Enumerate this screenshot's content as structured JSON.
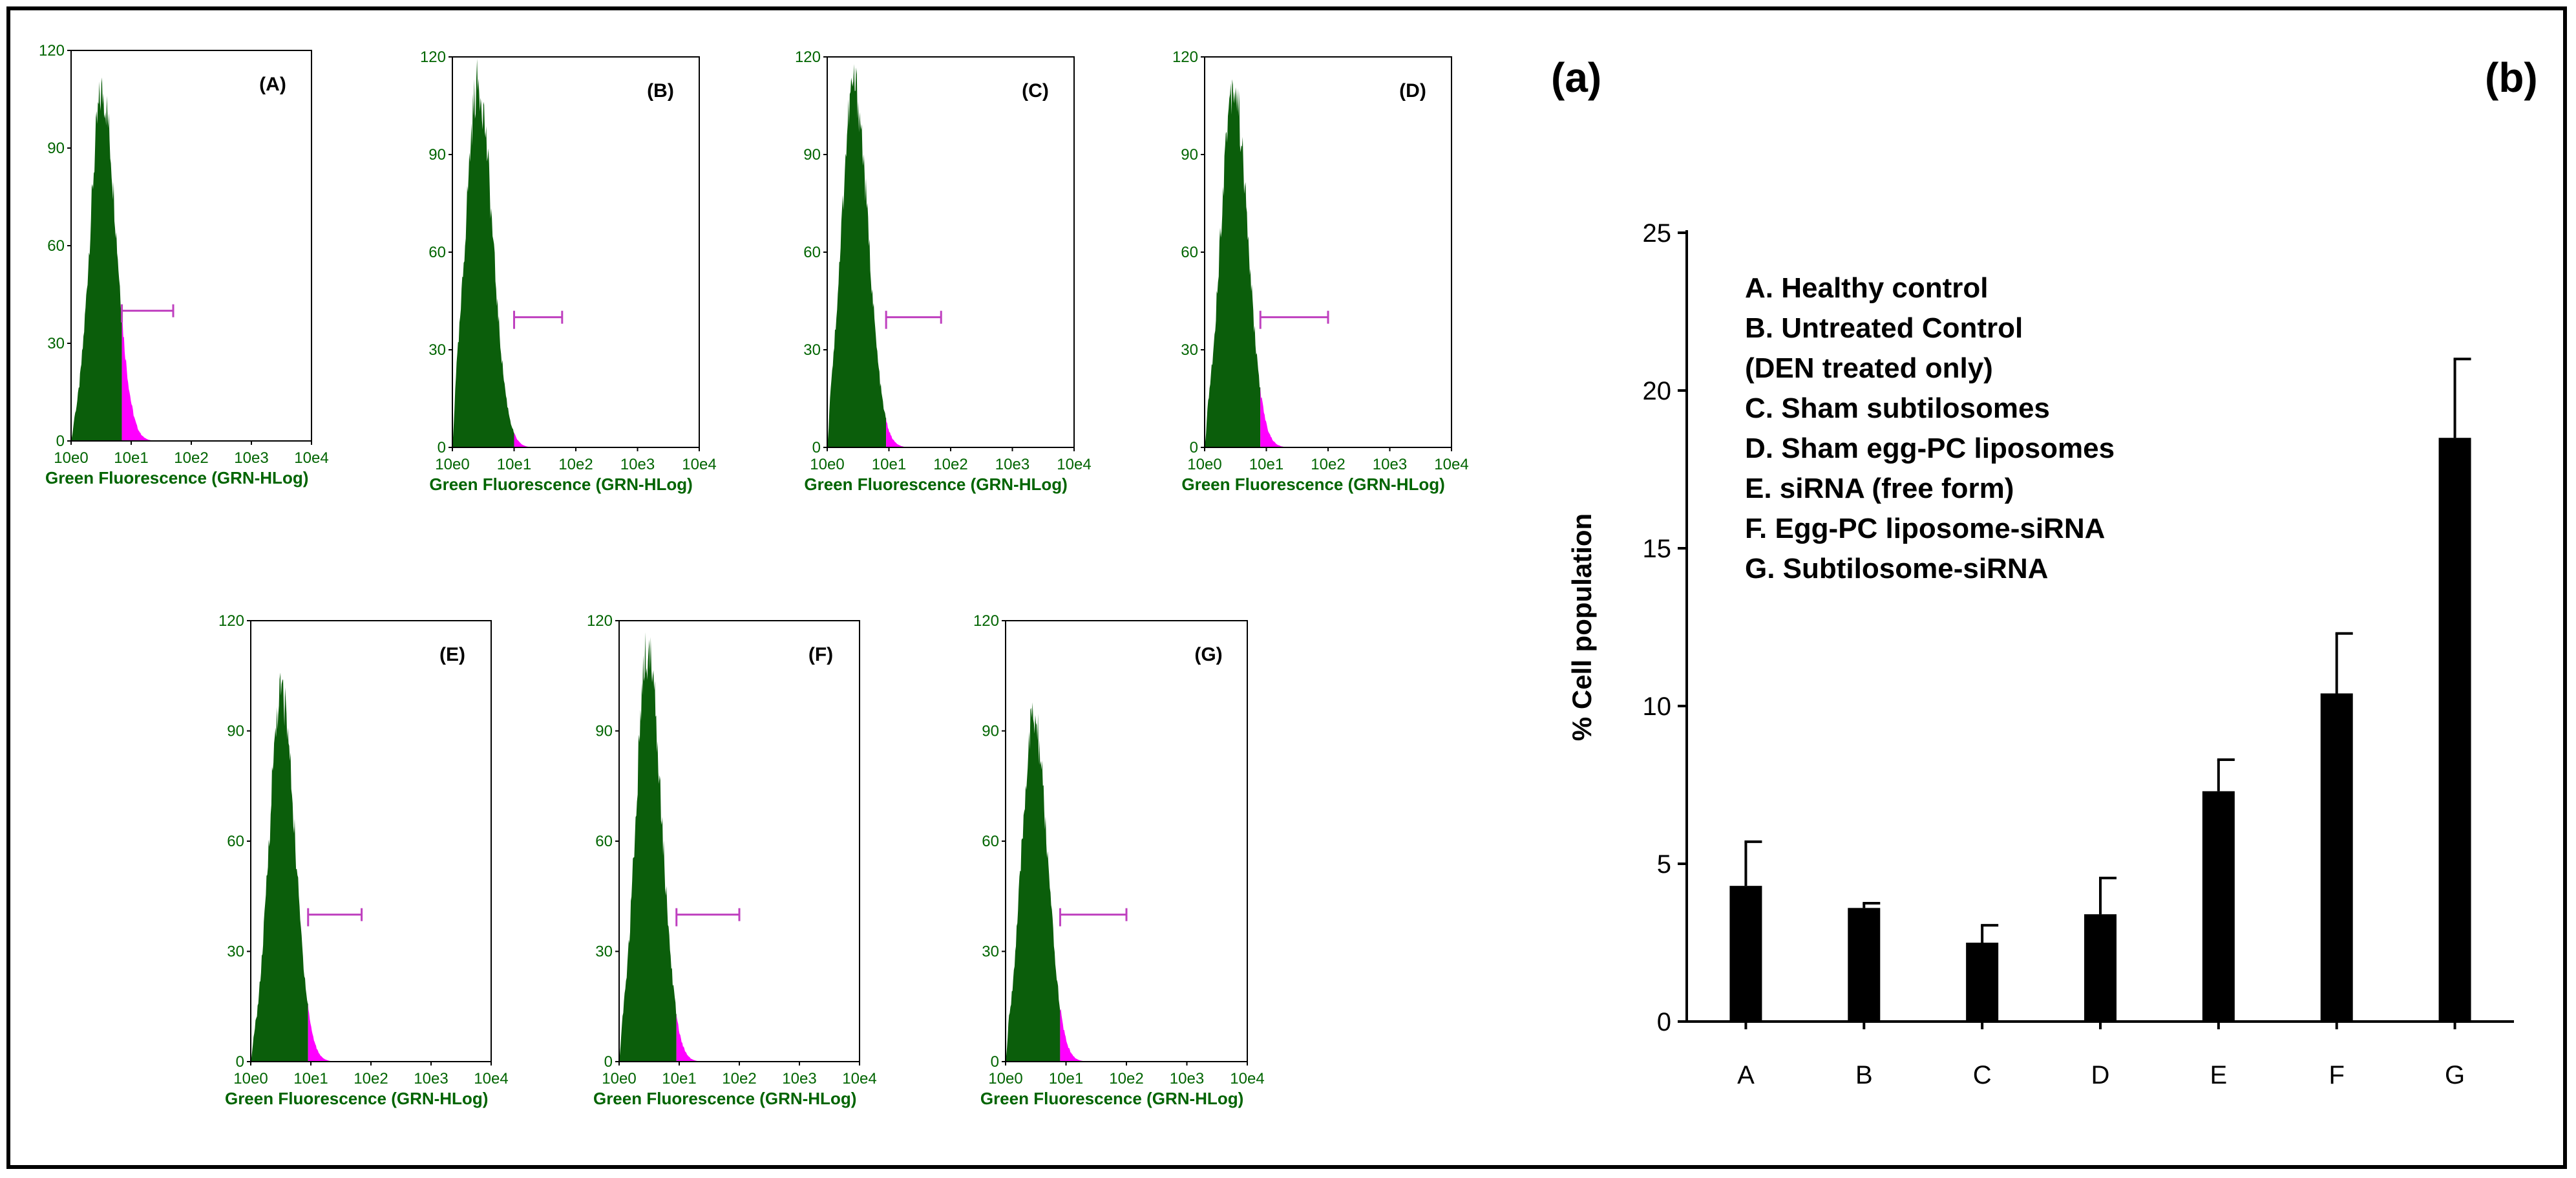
{
  "panel_labels": {
    "a": "(a)",
    "b": "(b)"
  },
  "colors": {
    "histogram": "#0b5e0b",
    "gated": "#ff00ff",
    "gate_line": "#bf40bf",
    "bars": "#000000"
  },
  "chart_data": [
    {
      "type": "histogram",
      "title": "(A)",
      "xlabel": "Green Fluorescence (GRN-HLog)",
      "x_scale": "log",
      "x_ticks": [
        "10e0",
        "10e1",
        "10e2",
        "10e3",
        "10e4"
      ],
      "y_ticks": [
        "0",
        "30",
        "60",
        "90",
        "120"
      ],
      "ylim": [
        0,
        120
      ],
      "peak_counts": 115,
      "peak_x": 3.3,
      "gate_range": [
        7,
        50
      ]
    },
    {
      "type": "histogram",
      "title": "(B)",
      "xlabel": "Green Fluorescence (GRN-HLog)",
      "x_scale": "log",
      "x_ticks": [
        "10e0",
        "10e1",
        "10e2",
        "10e3",
        "10e4"
      ],
      "y_ticks": [
        "0",
        "30",
        "60",
        "90",
        "120"
      ],
      "ylim": [
        0,
        120
      ],
      "peak_counts": 120,
      "peak_x": 2.6,
      "gate_range": [
        10,
        60
      ]
    },
    {
      "type": "histogram",
      "title": "(C)",
      "xlabel": "Green Fluorescence (GRN-HLog)",
      "x_scale": "log",
      "x_ticks": [
        "10e0",
        "10e1",
        "10e2",
        "10e3",
        "10e4"
      ],
      "y_ticks": [
        "0",
        "30",
        "60",
        "90",
        "120"
      ],
      "ylim": [
        0,
        120
      ],
      "peak_counts": 120,
      "peak_x": 2.7,
      "gate_range": [
        9,
        70
      ]
    },
    {
      "type": "histogram",
      "title": "(D)",
      "xlabel": "Green Fluorescence (GRN-HLog)",
      "x_scale": "log",
      "x_ticks": [
        "10e0",
        "10e1",
        "10e2",
        "10e3",
        "10e4"
      ],
      "y_ticks": [
        "0",
        "30",
        "60",
        "90",
        "120"
      ],
      "ylim": [
        0,
        120
      ],
      "peak_counts": 120,
      "peak_x": 2.9,
      "gate_range": [
        8,
        100
      ]
    },
    {
      "type": "histogram",
      "title": "(E)",
      "xlabel": "Green Fluorescence (GRN-HLog)",
      "x_scale": "log",
      "x_ticks": [
        "10e0",
        "10e1",
        "10e2",
        "10e3",
        "10e4"
      ],
      "y_ticks": [
        "0",
        "30",
        "60",
        "90",
        "120"
      ],
      "ylim": [
        0,
        120
      ],
      "peak_counts": 108,
      "peak_x": 3.2,
      "gate_range": [
        9,
        70
      ]
    },
    {
      "type": "histogram",
      "title": "(F)",
      "xlabel": "Green Fluorescence (GRN-HLog)",
      "x_scale": "log",
      "x_ticks": [
        "10e0",
        "10e1",
        "10e2",
        "10e3",
        "10e4"
      ],
      "y_ticks": [
        "0",
        "30",
        "60",
        "90",
        "120"
      ],
      "ylim": [
        0,
        120
      ],
      "peak_counts": 120,
      "peak_x": 3.0,
      "gate_range": [
        9,
        100
      ]
    },
    {
      "type": "histogram",
      "title": "(G)",
      "xlabel": "Green Fluorescence (GRN-HLog)",
      "x_scale": "log",
      "x_ticks": [
        "10e0",
        "10e1",
        "10e2",
        "10e3",
        "10e4"
      ],
      "y_ticks": [
        "0",
        "30",
        "60",
        "90",
        "120"
      ],
      "ylim": [
        0,
        120
      ],
      "peak_counts": 100,
      "peak_x": 2.9,
      "gate_range": [
        8,
        100
      ]
    },
    {
      "type": "bar",
      "ylabel": "% Cell population",
      "categories": [
        "A",
        "B",
        "C",
        "D",
        "E",
        "F",
        "G"
      ],
      "values": [
        4.3,
        3.6,
        2.5,
        3.4,
        7.3,
        10.4,
        18.5
      ],
      "errors": [
        1.4,
        0.15,
        0.55,
        1.15,
        1.0,
        1.9,
        2.5
      ],
      "ylim": [
        0,
        25
      ],
      "y_ticks": [
        "0",
        "5",
        "10",
        "15",
        "20",
        "25"
      ],
      "legend": [
        "A.   Healthy control",
        "B.   Untreated Control",
        "       (DEN treated only)",
        "C.   Sham subtilosomes",
        "D.   Sham egg-PC liposomes",
        "E.   siRNA (free form)",
        "F.   Egg-PC liposome-siRNA",
        "G.   Subtilosome-siRNA"
      ]
    }
  ]
}
